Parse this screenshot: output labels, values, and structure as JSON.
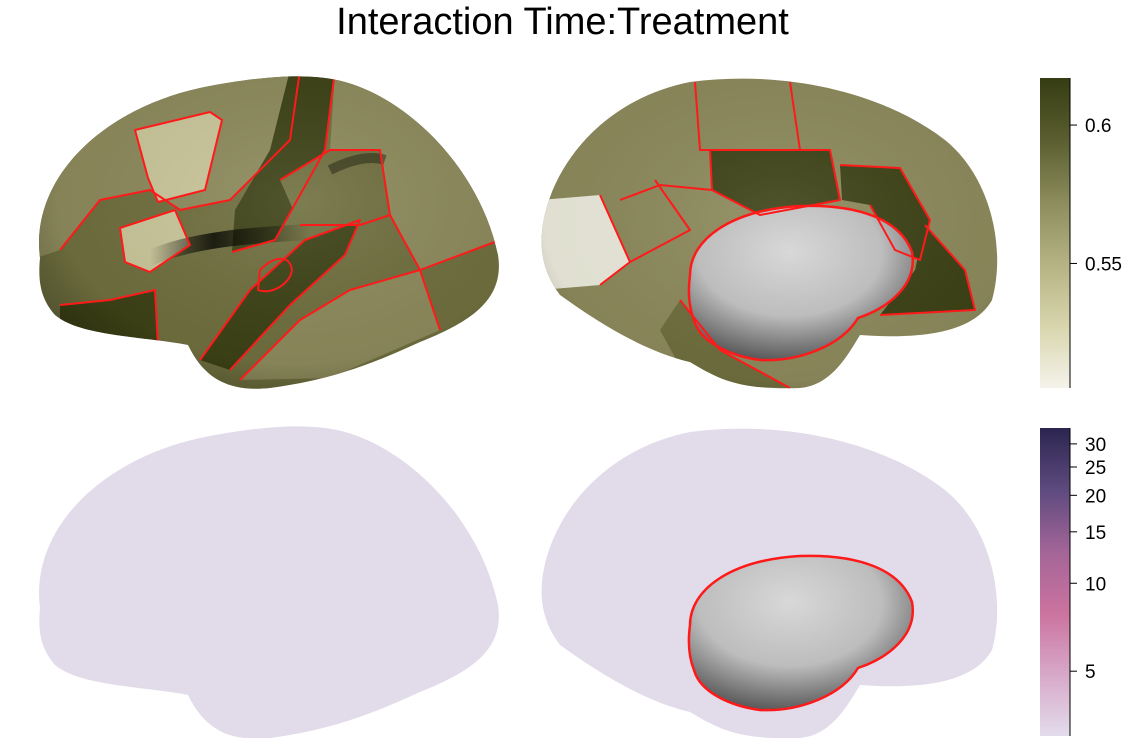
{
  "title": "Interaction Time:Treatment",
  "colorbars": {
    "top": {
      "ticks": [
        {
          "value": 0.6,
          "label": "0.6"
        },
        {
          "value": 0.55,
          "label": "0.55"
        }
      ],
      "range": [
        0.505,
        0.617
      ],
      "gradient": [
        "#363c12",
        "#5a5e30",
        "#8c8c5c",
        "#b5b383",
        "#d8d5ad",
        "#f4f3ea"
      ]
    },
    "bottom": {
      "ticks": [
        {
          "value": 30,
          "label": "30"
        },
        {
          "value": 25,
          "label": "25"
        },
        {
          "value": 20,
          "label": "20"
        },
        {
          "value": 15,
          "label": "15"
        },
        {
          "value": 10,
          "label": "10"
        },
        {
          "value": 5,
          "label": "5"
        }
      ],
      "range": [
        3,
        34
      ],
      "scale": "log",
      "gradient": [
        "#2c2550",
        "#5d4a7e",
        "#a36597",
        "#cb739f",
        "#d7a8c8",
        "#e3dcec"
      ]
    }
  },
  "colors": {
    "parcel_border": "#ff1a1a",
    "medial_wall": "#c4c4c4",
    "top_dark": "#3d4216",
    "top_mid": "#6f6f3f",
    "top_light": "#8d8a5c",
    "top_pale": "#cac69a",
    "top_palest": "#ecebdc",
    "bottom_gray": "#7c7c7c",
    "bottom_pale": "#e2dcea",
    "bottom_pink": "#dab9d3",
    "bottom_pink_strong": "#cfa2c5",
    "bottom_silver": "#cfcfd4"
  }
}
